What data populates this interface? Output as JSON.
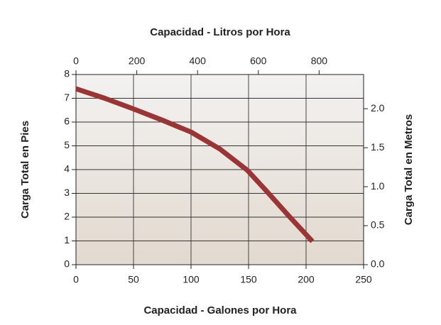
{
  "chart_data": {
    "type": "line",
    "x2label": "Capacidad - Litros por Hora",
    "xlabel": "Capacidad - Galones por Hora",
    "ylabel": "Carga Total en Pies",
    "y2label": "Carga Total en Metros",
    "x": [
      0,
      25,
      49,
      75,
      100,
      125,
      149,
      165,
      185,
      205.5
    ],
    "values": [
      7.4,
      7.0,
      6.57,
      6.08,
      5.58,
      4.87,
      3.97,
      3.13,
      2.05,
      0.98
    ],
    "color": "#9b3535",
    "xlim": [
      0,
      250
    ],
    "xticks": [
      0,
      50,
      100,
      150,
      200,
      250
    ],
    "x2lim": [
      0,
      946.35
    ],
    "x2ticks": [
      0,
      200,
      400,
      600,
      800
    ],
    "ylim": [
      0,
      8
    ],
    "yticks": [
      0,
      1,
      2,
      3,
      4,
      5,
      6,
      7,
      8
    ],
    "y2lim": [
      0,
      2.4384
    ],
    "y2ticks": [
      {
        "value": 0,
        "label": "0.0"
      },
      {
        "value": 0.5,
        "label": "0.5"
      },
      {
        "value": 1,
        "label": "1.0"
      },
      {
        "value": 1.5,
        "label": "1.5"
      },
      {
        "value": 2,
        "label": "2.0"
      }
    ],
    "grid": true
  }
}
